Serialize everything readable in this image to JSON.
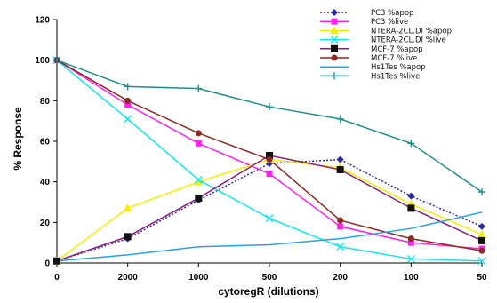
{
  "chart_data": {
    "type": "line",
    "title": "",
    "xlabel": "cytoregR (dilutions)",
    "ylabel": "% Response",
    "categories": [
      "0",
      "2000",
      "1000",
      "500",
      "200",
      "100",
      "50"
    ],
    "ylim": [
      0,
      120
    ],
    "yticks": [
      0,
      20,
      40,
      60,
      80,
      100,
      120
    ],
    "grid": false,
    "legend_position": "top-right",
    "series": [
      {
        "name": "PC3 %apop",
        "color": "#2a2aa8",
        "dash": true,
        "marker": "diamond",
        "values": [
          1,
          12,
          31,
          49,
          51,
          33,
          18
        ]
      },
      {
        "name": "PC3 %live",
        "color": "#ff22ee",
        "dash": false,
        "marker": "square",
        "values": [
          100,
          78,
          59,
          44,
          18,
          10,
          7
        ]
      },
      {
        "name": "NTERA-2CL.DI %apop",
        "color": "#f2ee00",
        "dash": false,
        "marker": "triangle",
        "values": [
          1,
          27,
          40,
          51,
          47,
          29,
          14
        ]
      },
      {
        "name": "NTERA-2CL.DI %live",
        "color": "#11e6f0",
        "dash": false,
        "marker": "x",
        "values": [
          100,
          71,
          41,
          22,
          8,
          2,
          1
        ]
      },
      {
        "name": "MCF-7 %apop",
        "color": "#8a1f7a",
        "dash": false,
        "marker": "square-black",
        "values": [
          1,
          13,
          32,
          53,
          46,
          27,
          11
        ]
      },
      {
        "name": "MCF-7 %live",
        "color": "#8b2a22",
        "dash": false,
        "marker": "circle",
        "values": [
          100,
          80,
          64,
          51,
          21,
          12,
          6
        ]
      },
      {
        "name": "Hs1Tes %apop",
        "color": "#2aa0e8",
        "dash": false,
        "marker": "none",
        "values": [
          1,
          4,
          8,
          9,
          12,
          17,
          25
        ]
      },
      {
        "name": "Hs1Tes %live",
        "color": "#1f8f8a",
        "dash": false,
        "marker": "plus",
        "values": [
          100,
          87,
          86,
          77,
          71,
          59,
          35
        ]
      }
    ]
  }
}
